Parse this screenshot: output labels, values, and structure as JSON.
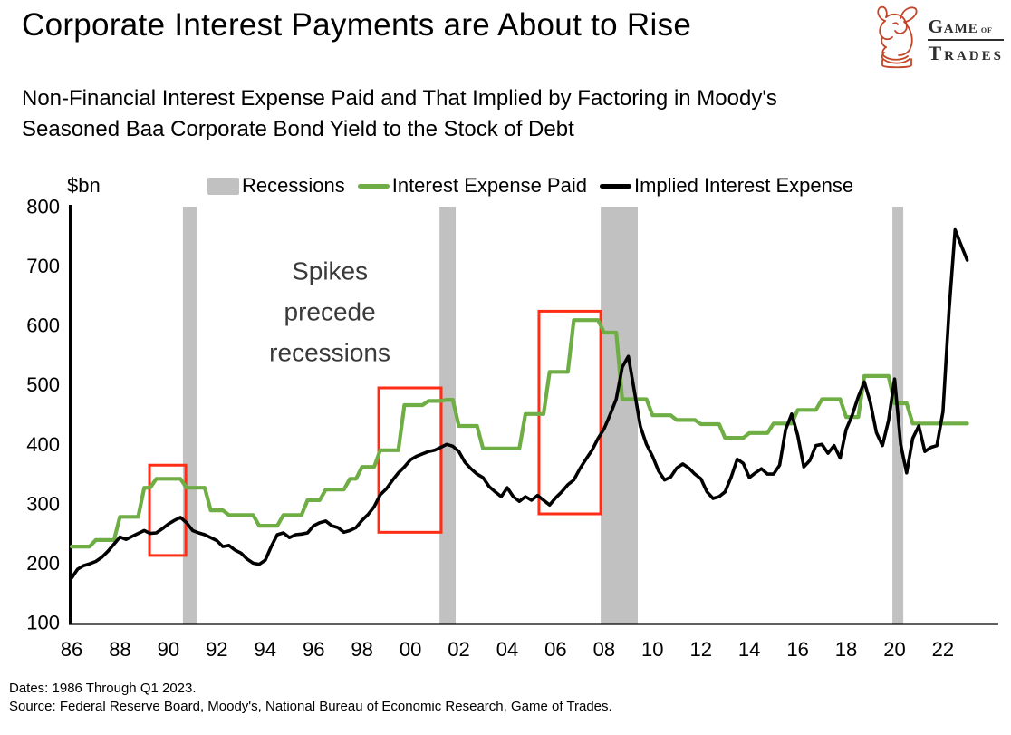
{
  "header": {
    "title": "Corporate Interest Payments are About to Rise",
    "subtitle_line1": "Non-Financial Interest Expense Paid and That Implied by Factoring in Moody's",
    "subtitle_line2": "Seasoned Baa Corporate Bond Yield to the Stock of Debt",
    "logo": {
      "word1": "Game",
      "word2": "of",
      "word3": "Trades",
      "icon_color": "#c24527",
      "text_color": "#2e2e2e"
    }
  },
  "legend": {
    "items": [
      {
        "label": "Recessions",
        "swatch": "band",
        "color": "#c1c1c1"
      },
      {
        "label": "Interest Expense Paid",
        "swatch": "line",
        "color": "#6fae44"
      },
      {
        "label": "Implied Interest Expense",
        "swatch": "line",
        "color": "#000000"
      }
    ]
  },
  "footer": {
    "dates": "Dates: 1986 Through Q1 2023.",
    "source": "Source: Federal Reserve Board, Moody's, National Bureau of Economic Research, Game of Trades."
  },
  "chart_data": {
    "type": "line",
    "unit_label": "$bn",
    "ylim": [
      100,
      800
    ],
    "y_ticks": [
      100,
      200,
      300,
      400,
      500,
      600,
      700,
      800
    ],
    "x_ticks": [
      {
        "year": 1986,
        "label": "86"
      },
      {
        "year": 1988,
        "label": "88"
      },
      {
        "year": 1990,
        "label": "90"
      },
      {
        "year": 1992,
        "label": "92"
      },
      {
        "year": 1994,
        "label": "94"
      },
      {
        "year": 1996,
        "label": "96"
      },
      {
        "year": 1998,
        "label": "98"
      },
      {
        "year": 2000,
        "label": "00"
      },
      {
        "year": 2002,
        "label": "02"
      },
      {
        "year": 2004,
        "label": "04"
      },
      {
        "year": 2006,
        "label": "06"
      },
      {
        "year": 2008,
        "label": "08"
      },
      {
        "year": 2010,
        "label": "10"
      },
      {
        "year": 2012,
        "label": "12"
      },
      {
        "year": 2014,
        "label": "14"
      },
      {
        "year": 2016,
        "label": "16"
      },
      {
        "year": 2018,
        "label": "18"
      },
      {
        "year": 2020,
        "label": "20"
      },
      {
        "year": 2022,
        "label": "22"
      }
    ],
    "x_start": 1986.0,
    "x_step": 0.25,
    "x_end": 2023.0,
    "annotation": {
      "lines": [
        "Spikes",
        "precede",
        "recessions"
      ],
      "x_year": 1996.67,
      "y_value": 622,
      "color": "#3a3a3a"
    },
    "recessions": {
      "color": "#c1c1c1",
      "ranges": [
        [
          1990.6,
          1991.17
        ],
        [
          2001.2,
          2001.87
        ],
        [
          2007.86,
          2009.39
        ],
        [
          2019.91,
          2020.36
        ]
      ]
    },
    "highlight_boxes": {
      "color": "#ff2d16",
      "boxes": [
        {
          "x0": 1989.22,
          "x1": 1990.72,
          "y0": 213,
          "y1": 365
        },
        {
          "x0": 1998.69,
          "x1": 2001.27,
          "y0": 252,
          "y1": 495
        },
        {
          "x0": 2005.31,
          "x1": 2007.86,
          "y0": 283,
          "y1": 624
        }
      ]
    },
    "series": [
      {
        "name": "Interest Expense Paid",
        "color": "#6fae44",
        "width": 4.2,
        "values": [
          228,
          228,
          228,
          228,
          239,
          239,
          239,
          239,
          278,
          278,
          278,
          278,
          327,
          327,
          342,
          342,
          342,
          342,
          342,
          327,
          327,
          327,
          327,
          289,
          289,
          289,
          281,
          281,
          281,
          281,
          281,
          263,
          263,
          263,
          263,
          281,
          281,
          281,
          281,
          306,
          306,
          306,
          324,
          324,
          324,
          324,
          342,
          342,
          362,
          362,
          362,
          390,
          390,
          390,
          390,
          466,
          466,
          466,
          466,
          473,
          473,
          473,
          475,
          475,
          431,
          431,
          431,
          431,
          393,
          393,
          393,
          393,
          393,
          393,
          393,
          451,
          451,
          451,
          451,
          522,
          522,
          522,
          522,
          609,
          609,
          609,
          609,
          609,
          588,
          588,
          588,
          476,
          476,
          476,
          476,
          476,
          449,
          449,
          449,
          449,
          441,
          441,
          441,
          441,
          434,
          434,
          434,
          434,
          411,
          411,
          411,
          411,
          419,
          419,
          419,
          419,
          435,
          435,
          435,
          435,
          458,
          458,
          458,
          458,
          476,
          476,
          476,
          476,
          446,
          446,
          446,
          515,
          515,
          515,
          515,
          515,
          469,
          469,
          469,
          435,
          435,
          435,
          435,
          435,
          435,
          435,
          435,
          435,
          435
        ]
      },
      {
        "name": "Implied Interest Expense",
        "color": "#000000",
        "width": 3.6,
        "values": [
          175,
          190,
          196,
          199,
          203,
          210,
          220,
          232,
          244,
          240,
          245,
          250,
          255,
          250,
          251,
          258,
          266,
          272,
          277,
          268,
          255,
          251,
          248,
          243,
          238,
          228,
          230,
          222,
          217,
          207,
          200,
          198,
          205,
          228,
          248,
          251,
          243,
          248,
          249,
          251,
          263,
          268,
          271,
          263,
          260,
          252,
          255,
          260,
          272,
          282,
          295,
          315,
          325,
          339,
          352,
          362,
          374,
          380,
          384,
          388,
          390,
          395,
          400,
          397,
          388,
          370,
          359,
          350,
          344,
          329,
          320,
          312,
          327,
          312,
          304,
          312,
          306,
          314,
          306,
          298,
          310,
          320,
          332,
          340,
          359,
          375,
          390,
          410,
          426,
          450,
          476,
          530,
          548,
          490,
          430,
          400,
          380,
          355,
          340,
          345,
          360,
          367,
          360,
          350,
          342,
          320,
          309,
          312,
          320,
          345,
          375,
          368,
          344,
          352,
          359,
          350,
          350,
          365,
          425,
          451,
          415,
          362,
          373,
          398,
          400,
          385,
          398,
          377,
          425,
          449,
          480,
          505,
          470,
          420,
          398,
          440,
          510,
          400,
          352,
          410,
          431,
          388,
          395,
          398,
          455,
          625,
          761,
          735,
          710
        ]
      }
    ]
  }
}
